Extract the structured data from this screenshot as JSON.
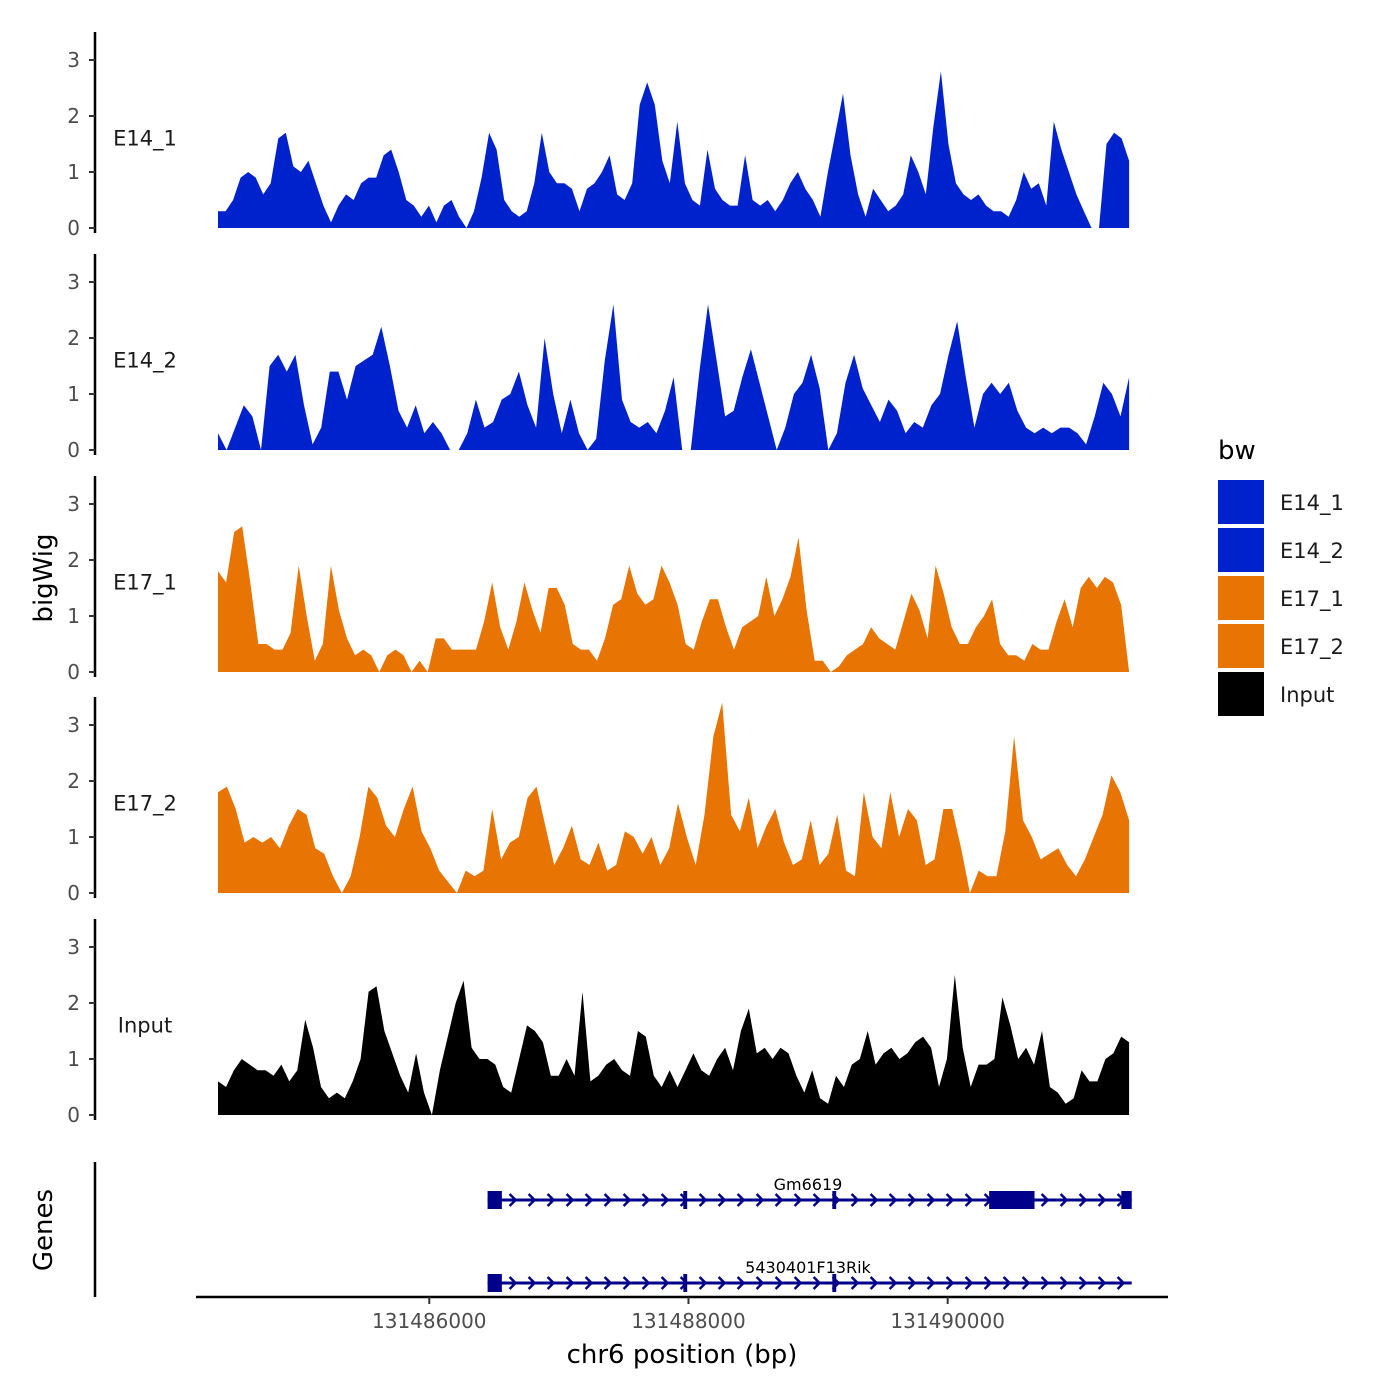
{
  "chart_data": {
    "type": "area",
    "title": "",
    "ylabel": "bigWig",
    "xlabel": "chr6 position (bp)",
    "genes_label": "Genes",
    "xlim": [
      131484200,
      131491700
    ],
    "ylim": [
      0,
      3.5
    ],
    "x_ticks": [
      131486000,
      131488000,
      131490000
    ],
    "x_tick_labels": [
      "131486000",
      "131488000",
      "131490000"
    ],
    "y_ticks": [
      0,
      1,
      2,
      3
    ],
    "y_tick_labels": [
      "0",
      "1",
      "2",
      "3"
    ],
    "x_start": 131484370,
    "x_end": 131491400,
    "legend": {
      "title": "bw",
      "entries": [
        {
          "label": "E14_1",
          "color": "#0022CC"
        },
        {
          "label": "E14_2",
          "color": "#0022CC"
        },
        {
          "label": "E17_1",
          "color": "#E87503"
        },
        {
          "label": "E17_2",
          "color": "#E87503"
        },
        {
          "label": "Input",
          "color": "#000000"
        }
      ]
    },
    "series": [
      {
        "name": "E14_1",
        "color": "#0022CC",
        "values": [
          0.3,
          0.3,
          0.5,
          0.9,
          1.0,
          0.9,
          0.6,
          0.8,
          1.6,
          1.7,
          1.1,
          1.0,
          1.2,
          0.8,
          0.4,
          0.1,
          0.4,
          0.6,
          0.5,
          0.8,
          0.9,
          0.9,
          1.3,
          1.4,
          1.0,
          0.5,
          0.4,
          0.2,
          0.4,
          0.1,
          0.4,
          0.5,
          0.2,
          0.0,
          0.3,
          0.9,
          1.7,
          1.4,
          0.5,
          0.3,
          0.2,
          0.3,
          0.8,
          1.7,
          1.0,
          0.8,
          0.8,
          0.7,
          0.3,
          0.7,
          0.8,
          1.0,
          1.3,
          0.6,
          0.5,
          0.8,
          2.2,
          2.6,
          2.2,
          1.2,
          0.8,
          1.9,
          0.8,
          0.5,
          0.4,
          1.4,
          0.7,
          0.5,
          0.4,
          0.4,
          1.3,
          0.5,
          0.4,
          0.5,
          0.3,
          0.5,
          0.8,
          1.0,
          0.7,
          0.5,
          0.2,
          1.0,
          1.7,
          2.4,
          1.3,
          0.6,
          0.2,
          0.7,
          0.5,
          0.3,
          0.4,
          0.6,
          1.3,
          1.0,
          0.6,
          1.8,
          2.8,
          1.5,
          0.8,
          0.6,
          0.5,
          0.6,
          0.4,
          0.3,
          0.3,
          0.2,
          0.5,
          1.0,
          0.7,
          0.8,
          0.4,
          1.9,
          1.4,
          1.0,
          0.6,
          0.3,
          0.0,
          0.0,
          1.5,
          1.7,
          1.6,
          1.2
        ]
      },
      {
        "name": "E14_2",
        "color": "#0022CC",
        "values": [
          0.3,
          0.0,
          0.4,
          0.8,
          0.6,
          0.0,
          1.5,
          1.7,
          1.4,
          1.7,
          0.8,
          0.1,
          0.4,
          1.4,
          1.4,
          0.9,
          1.5,
          1.6,
          1.7,
          2.2,
          1.5,
          0.7,
          0.4,
          0.8,
          0.3,
          0.5,
          0.3,
          0.0,
          0.0,
          0.3,
          0.9,
          0.4,
          0.5,
          0.9,
          1.0,
          1.4,
          0.8,
          0.4,
          2.0,
          1.0,
          0.3,
          0.9,
          0.3,
          0.0,
          0.2,
          1.6,
          2.6,
          0.9,
          0.5,
          0.4,
          0.5,
          0.3,
          0.7,
          1.3,
          0.0,
          0.0,
          1.4,
          2.6,
          1.6,
          0.6,
          0.7,
          1.3,
          1.8,
          1.2,
          0.6,
          0.0,
          0.4,
          1.0,
          1.2,
          1.7,
          1.1,
          0.0,
          0.3,
          1.2,
          1.7,
          1.1,
          0.8,
          0.5,
          0.9,
          0.7,
          0.3,
          0.5,
          0.4,
          0.8,
          1.0,
          1.7,
          2.3,
          1.3,
          0.4,
          1.0,
          1.2,
          1.0,
          1.2,
          0.7,
          0.4,
          0.3,
          0.4,
          0.3,
          0.4,
          0.4,
          0.3,
          0.1,
          0.6,
          1.2,
          1.0,
          0.6,
          1.3
        ]
      },
      {
        "name": "E17_1",
        "color": "#E87503",
        "values": [
          1.8,
          1.6,
          2.5,
          2.6,
          1.6,
          0.5,
          0.5,
          0.4,
          0.4,
          0.7,
          1.9,
          1.0,
          0.2,
          0.5,
          1.9,
          1.1,
          0.6,
          0.3,
          0.4,
          0.3,
          0.0,
          0.3,
          0.4,
          0.3,
          0.0,
          0.2,
          0.0,
          0.6,
          0.6,
          0.4,
          0.4,
          0.4,
          0.4,
          0.9,
          1.6,
          0.8,
          0.4,
          0.9,
          1.6,
          1.1,
          0.7,
          1.5,
          1.5,
          1.2,
          0.5,
          0.4,
          0.4,
          0.2,
          0.6,
          1.2,
          1.3,
          1.9,
          1.4,
          1.2,
          1.3,
          1.9,
          1.6,
          1.2,
          0.5,
          0.4,
          0.9,
          1.3,
          1.3,
          0.8,
          0.4,
          0.8,
          0.9,
          1.0,
          1.7,
          1.0,
          1.3,
          1.7,
          2.4,
          1.1,
          0.2,
          0.2,
          0.0,
          0.1,
          0.3,
          0.4,
          0.5,
          0.8,
          0.6,
          0.5,
          0.4,
          0.9,
          1.4,
          1.1,
          0.6,
          1.9,
          1.4,
          0.8,
          0.5,
          0.5,
          0.8,
          1.0,
          1.3,
          0.5,
          0.3,
          0.3,
          0.2,
          0.5,
          0.4,
          0.4,
          0.9,
          1.3,
          0.8,
          1.5,
          1.7,
          1.5,
          1.7,
          1.6,
          1.2,
          0.0
        ]
      },
      {
        "name": "E17_2",
        "color": "#E87503",
        "values": [
          1.8,
          1.9,
          1.5,
          0.9,
          1.0,
          0.9,
          1.0,
          0.8,
          1.2,
          1.5,
          1.4,
          0.8,
          0.7,
          0.3,
          0.0,
          0.3,
          1.0,
          1.9,
          1.7,
          1.2,
          1.0,
          1.5,
          1.9,
          1.1,
          0.8,
          0.4,
          0.2,
          0.0,
          0.4,
          0.3,
          0.4,
          1.5,
          0.6,
          0.9,
          1.0,
          1.7,
          1.9,
          1.2,
          0.5,
          0.8,
          1.2,
          0.6,
          0.5,
          0.9,
          0.4,
          0.5,
          1.1,
          1.0,
          0.7,
          1.0,
          0.5,
          0.8,
          1.6,
          1.0,
          0.5,
          1.4,
          2.8,
          3.4,
          1.4,
          1.1,
          1.7,
          0.8,
          1.2,
          1.5,
          0.9,
          0.5,
          0.6,
          1.3,
          0.5,
          0.7,
          1.4,
          0.4,
          0.3,
          1.8,
          1.0,
          0.8,
          1.8,
          1.0,
          1.5,
          1.3,
          0.5,
          0.6,
          1.5,
          1.5,
          0.8,
          0.0,
          0.4,
          0.3,
          0.3,
          1.1,
          2.8,
          1.3,
          1.0,
          0.6,
          0.7,
          0.8,
          0.5,
          0.3,
          0.6,
          1.0,
          1.4,
          2.1,
          1.8,
          1.3
        ]
      },
      {
        "name": "Input",
        "color": "#000000",
        "values": [
          0.6,
          0.5,
          0.8,
          1.0,
          0.9,
          0.8,
          0.8,
          0.7,
          0.9,
          0.6,
          0.8,
          1.7,
          1.2,
          0.5,
          0.3,
          0.4,
          0.3,
          0.6,
          1.0,
          2.2,
          2.3,
          1.5,
          1.1,
          0.7,
          0.4,
          1.1,
          0.4,
          0.0,
          0.8,
          1.4,
          2.0,
          2.4,
          1.2,
          1.0,
          1.0,
          0.9,
          0.5,
          0.4,
          1.0,
          1.6,
          1.5,
          1.3,
          0.7,
          0.7,
          1.0,
          0.7,
          2.2,
          0.6,
          0.7,
          0.9,
          1.0,
          0.8,
          0.7,
          1.5,
          1.4,
          0.7,
          0.5,
          0.8,
          0.5,
          0.8,
          1.1,
          0.8,
          0.7,
          1.0,
          1.2,
          0.8,
          1.5,
          1.9,
          1.1,
          1.2,
          1.0,
          1.2,
          1.1,
          0.7,
          0.4,
          0.8,
          0.3,
          0.2,
          0.7,
          0.5,
          0.9,
          1.0,
          1.5,
          0.9,
          1.1,
          1.2,
          1.0,
          1.1,
          1.3,
          1.4,
          1.2,
          0.5,
          1.0,
          2.5,
          1.2,
          0.5,
          0.9,
          0.9,
          1.0,
          2.1,
          1.6,
          1.0,
          1.2,
          0.9,
          1.5,
          0.5,
          0.4,
          0.2,
          0.3,
          0.8,
          0.6,
          0.6,
          1.0,
          1.1,
          1.4,
          1.3
        ]
      }
    ],
    "genes": [
      {
        "name": "Gm6619",
        "start": 131486450,
        "end": 131491420,
        "strand": "+",
        "exons": [
          [
            131486450,
            131486560
          ],
          [
            131487960,
            131487990
          ],
          [
            131489110,
            131489140
          ],
          [
            131490320,
            131490670
          ],
          [
            131491340,
            131491420
          ]
        ]
      },
      {
        "name": "5430401F13Rik",
        "start": 131486450,
        "end": 131491420,
        "strand": "+",
        "exons": [
          [
            131486450,
            131486560
          ],
          [
            131487960,
            131487990
          ],
          [
            131489110,
            131489140
          ]
        ]
      }
    ]
  }
}
